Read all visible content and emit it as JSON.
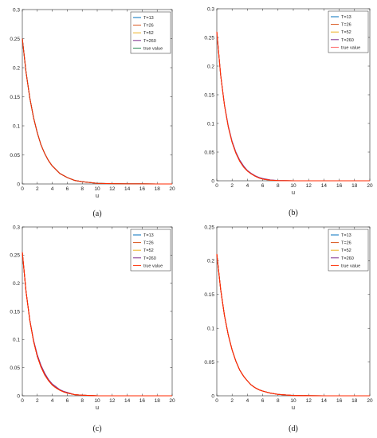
{
  "chart_data": [
    {
      "type": "line",
      "caption": "(a)",
      "xlabel": "u",
      "ylabel": "",
      "xlim": [
        0,
        20
      ],
      "ylim": [
        0,
        0.3
      ],
      "xticks": [
        0,
        2,
        4,
        6,
        8,
        10,
        12,
        14,
        16,
        18,
        20
      ],
      "yticks": [
        0,
        0.05,
        0.1,
        0.15,
        0.2,
        0.25,
        0.3
      ],
      "ytick_labels": [
        "0",
        "0.05",
        "0.1",
        "0.15",
        "0.2",
        "0.25",
        "0.3"
      ],
      "grid": false,
      "legend_position": "top-right",
      "x": [
        0,
        0.5,
        1,
        1.5,
        2,
        2.5,
        3,
        3.5,
        4,
        5,
        6,
        7,
        8,
        10,
        12,
        14,
        16,
        18,
        20
      ],
      "series": [
        {
          "name": "T=13",
          "color": "#0072bd",
          "values": [
            0.25,
            0.192,
            0.148,
            0.114,
            0.088,
            0.067,
            0.052,
            0.04,
            0.031,
            0.018,
            0.011,
            0.006,
            0.004,
            0.001,
            0.0005,
            0.0002,
            0.0001,
            0,
            0
          ]
        },
        {
          "name": "T=26",
          "color": "#d95319",
          "values": [
            0.25,
            0.192,
            0.148,
            0.114,
            0.088,
            0.067,
            0.052,
            0.04,
            0.031,
            0.018,
            0.011,
            0.006,
            0.004,
            0.001,
            0.0005,
            0.0002,
            0.0001,
            0,
            0
          ]
        },
        {
          "name": "T=52",
          "color": "#edb120",
          "values": [
            0.25,
            0.192,
            0.148,
            0.114,
            0.088,
            0.067,
            0.052,
            0.04,
            0.031,
            0.018,
            0.011,
            0.006,
            0.004,
            0.001,
            0.0005,
            0.0002,
            0.0001,
            0,
            0
          ]
        },
        {
          "name": "T=260",
          "color": "#7e2f8e",
          "values": [
            0.25,
            0.192,
            0.148,
            0.114,
            0.088,
            0.067,
            0.052,
            0.04,
            0.031,
            0.018,
            0.011,
            0.006,
            0.004,
            0.001,
            0.0005,
            0.0002,
            0.0001,
            0,
            0
          ]
        },
        {
          "name": "true value",
          "color": "#2e8b57",
          "values": [
            0.25,
            0.192,
            0.148,
            0.114,
            0.088,
            0.067,
            0.052,
            0.04,
            0.031,
            0.018,
            0.011,
            0.006,
            0.004,
            0.001,
            0.0005,
            0.0002,
            0.0001,
            0,
            0
          ]
        }
      ],
      "overlay_color": "#ff2a00",
      "overlay_values": [
        0.25,
        0.192,
        0.148,
        0.114,
        0.088,
        0.067,
        0.052,
        0.04,
        0.031,
        0.018,
        0.011,
        0.006,
        0.004,
        0.001,
        0.0005,
        0.0002,
        0.0001,
        0,
        0
      ]
    },
    {
      "type": "line",
      "caption": "(b)",
      "xlabel": "u",
      "ylabel": "",
      "xlim": [
        0,
        20
      ],
      "ylim": [
        0,
        0.3
      ],
      "xticks": [
        0,
        2,
        4,
        6,
        8,
        10,
        12,
        14,
        16,
        18,
        20
      ],
      "yticks": [
        0,
        0.05,
        0.1,
        0.15,
        0.2,
        0.25,
        0.3
      ],
      "ytick_labels": [
        "0",
        "0.05",
        "0.1",
        "0.15",
        "0.2",
        "0.25",
        "0.3"
      ],
      "grid": false,
      "legend_position": "top-right",
      "x": [
        0,
        0.5,
        1,
        1.5,
        2,
        2.5,
        3,
        3.5,
        4,
        4.5,
        5,
        5.5,
        6,
        7,
        8,
        10,
        12,
        14,
        16,
        18,
        20
      ],
      "series": [
        {
          "name": "T=13",
          "color": "#0072bd",
          "values": [
            0.26,
            0.185,
            0.132,
            0.094,
            0.067,
            0.048,
            0.034,
            0.024,
            0.017,
            0.012,
            0.008,
            0.005,
            0.003,
            0.001,
            0.0004,
            0,
            0,
            0,
            0,
            0,
            0
          ]
        },
        {
          "name": "T=26",
          "color": "#d95319",
          "values": [
            0.26,
            0.185,
            0.132,
            0.094,
            0.067,
            0.048,
            0.034,
            0.024,
            0.017,
            0.012,
            0.008,
            0.005,
            0.003,
            0.001,
            0.0004,
            0,
            0,
            0,
            0,
            0,
            0
          ]
        },
        {
          "name": "T=52",
          "color": "#edb120",
          "values": [
            0.26,
            0.185,
            0.132,
            0.094,
            0.067,
            0.048,
            0.034,
            0.024,
            0.017,
            0.012,
            0.008,
            0.005,
            0.003,
            0.001,
            0.0004,
            0,
            0,
            0,
            0,
            0,
            0
          ]
        },
        {
          "name": "T=260",
          "color": "#7e2f8e",
          "values": [
            0.26,
            0.185,
            0.133,
            0.096,
            0.069,
            0.05,
            0.036,
            0.026,
            0.018,
            0.013,
            0.009,
            0.006,
            0.004,
            0.0015,
            0.0005,
            0,
            0,
            0,
            0,
            0,
            0
          ]
        },
        {
          "name": "true value",
          "color": "#ff6f6f",
          "values": [
            0.26,
            0.185,
            0.132,
            0.094,
            0.067,
            0.048,
            0.034,
            0.024,
            0.017,
            0.012,
            0.008,
            0.005,
            0.003,
            0.001,
            0.0004,
            0,
            0,
            0,
            0,
            0,
            0
          ]
        }
      ],
      "overlay_color": "#ff2a00",
      "overlay_values": [
        0.26,
        0.185,
        0.132,
        0.094,
        0.067,
        0.048,
        0.034,
        0.024,
        0.017,
        0.012,
        0.008,
        0.005,
        0.003,
        0.001,
        0.0004,
        0,
        0,
        0,
        0,
        0,
        0
      ]
    },
    {
      "type": "line",
      "caption": "(c)",
      "xlabel": "u",
      "ylabel": "",
      "xlim": [
        0,
        20
      ],
      "ylim": [
        0,
        0.3
      ],
      "xticks": [
        0,
        2,
        4,
        6,
        8,
        10,
        12,
        14,
        16,
        18,
        20
      ],
      "yticks": [
        0,
        0.05,
        0.1,
        0.15,
        0.2,
        0.25,
        0.3
      ],
      "ytick_labels": [
        "0",
        "0.05",
        "0.1",
        "0.15",
        "0.2",
        "0.25",
        "0.3"
      ],
      "grid": false,
      "legend_position": "top-right",
      "x": [
        0,
        0.5,
        1,
        1.5,
        2,
        2.5,
        3,
        3.5,
        4,
        4.5,
        5,
        5.5,
        6,
        7,
        8,
        10,
        12,
        14,
        16,
        18,
        20
      ],
      "series": [
        {
          "name": "T=13",
          "color": "#0072bd",
          "values": [
            0.255,
            0.185,
            0.134,
            0.097,
            0.07,
            0.051,
            0.037,
            0.027,
            0.019,
            0.014,
            0.01,
            0.007,
            0.005,
            0.002,
            0.001,
            0,
            0,
            0,
            0,
            0,
            0
          ]
        },
        {
          "name": "T=26",
          "color": "#d95319",
          "values": [
            0.255,
            0.185,
            0.134,
            0.097,
            0.07,
            0.051,
            0.037,
            0.027,
            0.019,
            0.014,
            0.01,
            0.007,
            0.005,
            0.002,
            0.001,
            0,
            0,
            0,
            0,
            0,
            0
          ]
        },
        {
          "name": "T=52",
          "color": "#edb120",
          "values": [
            0.255,
            0.185,
            0.134,
            0.097,
            0.07,
            0.051,
            0.037,
            0.027,
            0.019,
            0.014,
            0.01,
            0.007,
            0.005,
            0.002,
            0.001,
            0,
            0,
            0,
            0,
            0,
            0
          ]
        },
        {
          "name": "T=260",
          "color": "#7e2f8e",
          "values": [
            0.255,
            0.185,
            0.135,
            0.099,
            0.073,
            0.054,
            0.04,
            0.029,
            0.021,
            0.016,
            0.011,
            0.008,
            0.006,
            0.002,
            0.001,
            0,
            0,
            0,
            0,
            0,
            0
          ]
        },
        {
          "name": "true value",
          "color": "#ff2a00",
          "values": [
            0.255,
            0.185,
            0.134,
            0.097,
            0.07,
            0.051,
            0.037,
            0.027,
            0.019,
            0.014,
            0.01,
            0.007,
            0.005,
            0.002,
            0.001,
            0,
            0,
            0,
            0,
            0,
            0
          ]
        }
      ],
      "overlay_color": "#ff2a00",
      "overlay_values": [
        0.255,
        0.185,
        0.134,
        0.097,
        0.07,
        0.051,
        0.037,
        0.027,
        0.019,
        0.014,
        0.01,
        0.007,
        0.005,
        0.002,
        0.001,
        0,
        0,
        0,
        0,
        0,
        0
      ]
    },
    {
      "type": "line",
      "caption": "(d)",
      "xlabel": "u",
      "ylabel": "",
      "xlim": [
        0,
        20
      ],
      "ylim": [
        0,
        0.25
      ],
      "xticks": [
        0,
        2,
        4,
        6,
        8,
        10,
        12,
        14,
        16,
        18,
        20
      ],
      "yticks": [
        0,
        0.05,
        0.1,
        0.15,
        0.2,
        0.25
      ],
      "ytick_labels": [
        "0",
        "0.05",
        "0.1",
        "0.15",
        "0.2",
        "0.25"
      ],
      "grid": false,
      "legend_position": "top-right",
      "x": [
        0,
        0.5,
        1,
        1.5,
        2,
        2.5,
        3,
        3.5,
        4,
        4.5,
        5,
        5.5,
        6,
        7,
        8,
        10,
        12,
        14,
        16,
        18,
        20
      ],
      "series": [
        {
          "name": "T=13",
          "color": "#0072bd",
          "values": [
            0.21,
            0.158,
            0.119,
            0.09,
            0.068,
            0.051,
            0.038,
            0.029,
            0.022,
            0.016,
            0.012,
            0.009,
            0.007,
            0.004,
            0.002,
            0.0005,
            0.0001,
            0,
            0,
            0,
            0
          ]
        },
        {
          "name": "T=26",
          "color": "#d95319",
          "values": [
            0.21,
            0.158,
            0.119,
            0.09,
            0.068,
            0.051,
            0.038,
            0.029,
            0.022,
            0.016,
            0.012,
            0.009,
            0.007,
            0.004,
            0.002,
            0.0005,
            0.0001,
            0,
            0,
            0,
            0
          ]
        },
        {
          "name": "T=52",
          "color": "#edb120",
          "values": [
            0.21,
            0.158,
            0.119,
            0.09,
            0.068,
            0.051,
            0.038,
            0.029,
            0.022,
            0.016,
            0.012,
            0.009,
            0.007,
            0.004,
            0.002,
            0.0005,
            0.0001,
            0,
            0,
            0,
            0
          ]
        },
        {
          "name": "T=260",
          "color": "#7e2f8e",
          "values": [
            0.21,
            0.158,
            0.119,
            0.09,
            0.068,
            0.051,
            0.038,
            0.029,
            0.022,
            0.016,
            0.012,
            0.009,
            0.007,
            0.004,
            0.002,
            0.0005,
            0.0001,
            0,
            0,
            0,
            0
          ]
        },
        {
          "name": "true value",
          "color": "#ff2a00",
          "values": [
            0.21,
            0.158,
            0.119,
            0.09,
            0.068,
            0.051,
            0.038,
            0.029,
            0.022,
            0.016,
            0.012,
            0.009,
            0.007,
            0.004,
            0.002,
            0.0005,
            0.0001,
            0,
            0,
            0,
            0
          ]
        }
      ],
      "overlay_color": "#ff2a00",
      "overlay_values": [
        0.21,
        0.158,
        0.119,
        0.09,
        0.068,
        0.051,
        0.038,
        0.029,
        0.022,
        0.016,
        0.012,
        0.009,
        0.007,
        0.004,
        0.002,
        0.0005,
        0.0001,
        0,
        0,
        0,
        0
      ]
    }
  ]
}
